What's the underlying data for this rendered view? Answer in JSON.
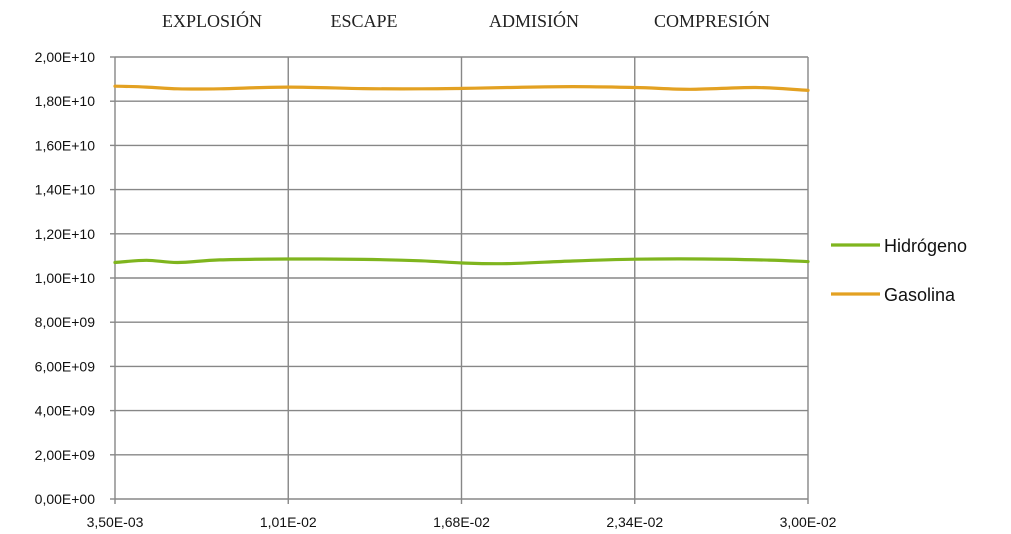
{
  "chart_data": {
    "type": "line",
    "title": "",
    "xlabel": "",
    "ylabel": "",
    "phase_labels": [
      "EXPLOSIÓN",
      "ESCAPE",
      "ADMISIÓN",
      "COMPRESIÓN"
    ],
    "x_ticks": [
      "3,50E-03",
      "1,01E-02",
      "1,68E-02",
      "2,34E-02",
      "3,00E-02"
    ],
    "y_ticks": [
      "0,00E+00",
      "2,00E+09",
      "4,00E+09",
      "6,00E+09",
      "8,00E+09",
      "1,00E+10",
      "1,20E+10",
      "1,40E+10",
      "1,60E+10",
      "1,80E+10",
      "2,00E+10"
    ],
    "xlim": [
      0.0035,
      0.03
    ],
    "ylim": [
      0,
      20000000000
    ],
    "grid": true,
    "legend_position": "right",
    "series": [
      {
        "name": "Hidrógeno",
        "color": "#7fb51e",
        "x": [
          0.0035,
          0.0047,
          0.0059,
          0.0075,
          0.0101,
          0.013,
          0.0152,
          0.0168,
          0.0185,
          0.021,
          0.0234,
          0.026,
          0.0285,
          0.03
        ],
        "y": [
          10700000000,
          10800000000,
          10700000000,
          10820000000,
          10860000000,
          10840000000,
          10780000000,
          10680000000,
          10650000000,
          10770000000,
          10850000000,
          10860000000,
          10810000000,
          10740000000
        ]
      },
      {
        "name": "Gasolina",
        "color": "#e3a122",
        "x": [
          0.0035,
          0.0047,
          0.0059,
          0.0075,
          0.0101,
          0.013,
          0.0152,
          0.0168,
          0.0185,
          0.021,
          0.0234,
          0.0255,
          0.028,
          0.03
        ],
        "y": [
          18680000000,
          18640000000,
          18560000000,
          18560000000,
          18640000000,
          18570000000,
          18560000000,
          18580000000,
          18620000000,
          18660000000,
          18620000000,
          18540000000,
          18620000000,
          18490000000
        ]
      }
    ]
  }
}
